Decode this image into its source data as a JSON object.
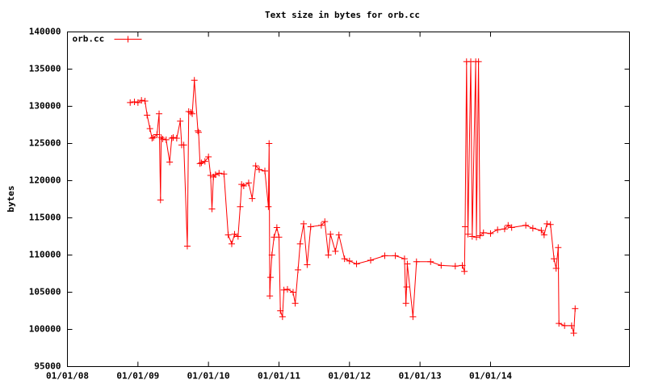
{
  "chart_data": {
    "type": "line",
    "title": "Text size in bytes for orb.cc",
    "ylabel": "bytes",
    "x": [
      2008.89,
      2008.95,
      2009.0,
      2009.05,
      2009.1,
      2009.13,
      2009.17,
      2009.2,
      2009.22,
      2009.27,
      2009.3,
      2009.32,
      2009.33,
      2009.35,
      2009.4,
      2009.45,
      2009.48,
      2009.5,
      2009.55,
      2009.6,
      2009.62,
      2009.65,
      2009.7,
      2009.72,
      2009.75,
      2009.77,
      2009.8,
      2009.85,
      2009.86,
      2009.88,
      2009.9,
      2009.95,
      2010.0,
      2010.03,
      2010.05,
      2010.07,
      2010.1,
      2010.15,
      2010.22,
      2010.28,
      2010.33,
      2010.37,
      2010.42,
      2010.45,
      2010.47,
      2010.5,
      2010.57,
      2010.62,
      2010.67,
      2010.72,
      2010.8,
      2010.85,
      2010.86,
      2010.87,
      2010.88,
      2010.9,
      2010.93,
      2010.97,
      2011.0,
      2011.02,
      2011.05,
      2011.07,
      2011.12,
      2011.2,
      2011.23,
      2011.27,
      2011.3,
      2011.35,
      2011.4,
      2011.45,
      2011.6,
      2011.65,
      2011.7,
      2011.73,
      2011.8,
      2011.85,
      2011.93,
      2012.0,
      2012.1,
      2012.3,
      2012.5,
      2012.65,
      2012.78,
      2012.8,
      2012.81,
      2012.82,
      2012.9,
      2012.95,
      2013.15,
      2013.3,
      2013.5,
      2013.6,
      2013.63,
      2013.64,
      2013.66,
      2013.68,
      2013.72,
      2013.74,
      2013.79,
      2013.8,
      2013.83,
      2013.85,
      2013.9,
      2014.0,
      2014.1,
      2014.2,
      2014.25,
      2014.3,
      2014.5,
      2014.6,
      2014.72,
      2014.76,
      2014.8,
      2014.85,
      2014.9,
      2014.93,
      2014.96,
      2014.97,
      2015.05,
      2015.15,
      2015.18,
      2015.2
    ],
    "series": [
      {
        "name": "orb.cc",
        "color": "#ff0000",
        "values": [
          130500,
          130600,
          130500,
          130800,
          130700,
          128800,
          127000,
          125700,
          125800,
          126200,
          129000,
          117400,
          125800,
          125600,
          125500,
          122500,
          125700,
          125800,
          125700,
          128000,
          124800,
          124800,
          111200,
          129300,
          129200,
          129000,
          133500,
          126700,
          126500,
          122300,
          122400,
          122600,
          123200,
          120700,
          116200,
          120500,
          120800,
          121000,
          120900,
          112700,
          111500,
          112800,
          112500,
          116500,
          119500,
          119300,
          119700,
          117600,
          122000,
          121500,
          121300,
          116500,
          125000,
          104500,
          107000,
          110000,
          112400,
          113700,
          112400,
          102500,
          101700,
          105300,
          105400,
          105000,
          103500,
          108000,
          111500,
          114200,
          108700,
          113800,
          114000,
          114500,
          110000,
          112800,
          110500,
          112700,
          109500,
          109200,
          108800,
          109300,
          109900,
          109900,
          109500,
          103500,
          105700,
          108800,
          101700,
          109100,
          109100,
          108600,
          108500,
          108600,
          107800,
          113800,
          136000,
          112800,
          136000,
          112500,
          136000,
          112400,
          136000,
          112600,
          113000,
          112900,
          113400,
          113500,
          114000,
          113700,
          114000,
          113600,
          113300,
          112700,
          114200,
          114100,
          109500,
          108200,
          111000,
          100800,
          100500,
          100500,
          99500,
          102800
        ]
      }
    ],
    "xlim": [
      2008,
      2015.97
    ],
    "xticks": [
      {
        "value": 2008,
        "label": "01/01/08"
      },
      {
        "value": 2009,
        "label": "01/01/09"
      },
      {
        "value": 2010,
        "label": "01/01/10"
      },
      {
        "value": 2011,
        "label": "01/01/11"
      },
      {
        "value": 2012,
        "label": "01/01/12"
      },
      {
        "value": 2013,
        "label": "01/01/13"
      },
      {
        "value": 2014,
        "label": "01/01/14"
      }
    ],
    "ylim": [
      95000,
      140000
    ],
    "yticks": [
      95000,
      100000,
      105000,
      110000,
      115000,
      120000,
      125000,
      130000,
      135000,
      140000
    ],
    "legend": "top-left",
    "grid": false
  }
}
